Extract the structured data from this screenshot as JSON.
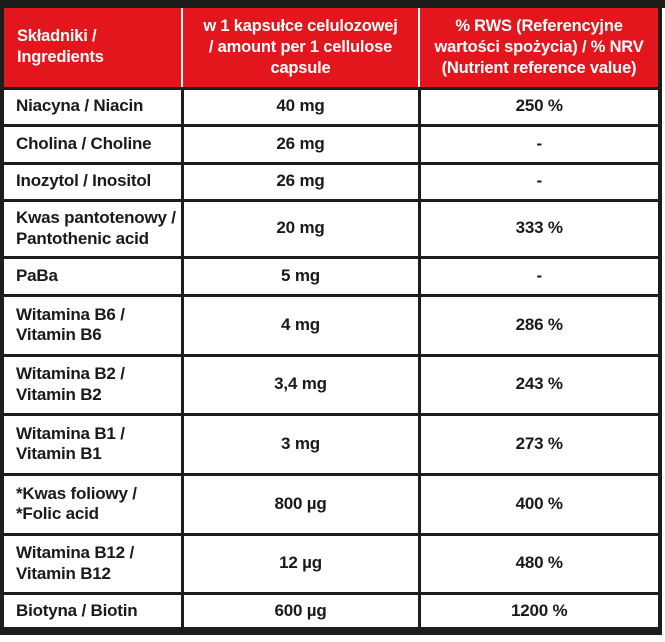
{
  "colors": {
    "header_red": "#e2161c",
    "border_black": "#1d1d1b",
    "header_text": "#ffffff",
    "body_text": "#1a1a1a"
  },
  "table": {
    "header": {
      "ingredients": "Składniki /\nIngredients",
      "amount": "w 1 kapsułce celulozowej\n/ amount per 1 cellulose\ncapsule",
      "nrv": "% RWS (Referencyjne\nwartości spożycia) / % NRV\n(Nutrient reference value)"
    },
    "rows": [
      {
        "ingredient": "Niacyna / Niacin",
        "amount": "40 mg",
        "nrv": "250 %"
      },
      {
        "ingredient": "Cholina / Choline",
        "amount": "26 mg",
        "nrv": "-"
      },
      {
        "ingredient": "Inozytol / Inositol",
        "amount": "26 mg",
        "nrv": "-"
      },
      {
        "ingredient": "Kwas pantotenowy /\nPantothenic acid",
        "amount": "20 mg",
        "nrv": "333 %"
      },
      {
        "ingredient": "PaBa",
        "amount": "5 mg",
        "nrv": "-"
      },
      {
        "ingredient": "Witamina B6 /\nVitamin B6",
        "amount": "4 mg",
        "nrv": "286 %"
      },
      {
        "ingredient": "Witamina B2 /\nVitamin B2",
        "amount": "3,4 mg",
        "nrv": "243 %"
      },
      {
        "ingredient": "Witamina B1 /\nVitamin B1",
        "amount": "3 mg",
        "nrv": "273 %"
      },
      {
        "ingredient": "*Kwas foliowy /\n*Folic acid",
        "amount": "800 µg",
        "nrv": "400 %"
      },
      {
        "ingredient": "Witamina B12 /\nVitamin B12",
        "amount": "12 µg",
        "nrv": "480 %"
      },
      {
        "ingredient": "Biotyna / Biotin",
        "amount": "600 µg",
        "nrv": "1200 %"
      }
    ]
  }
}
